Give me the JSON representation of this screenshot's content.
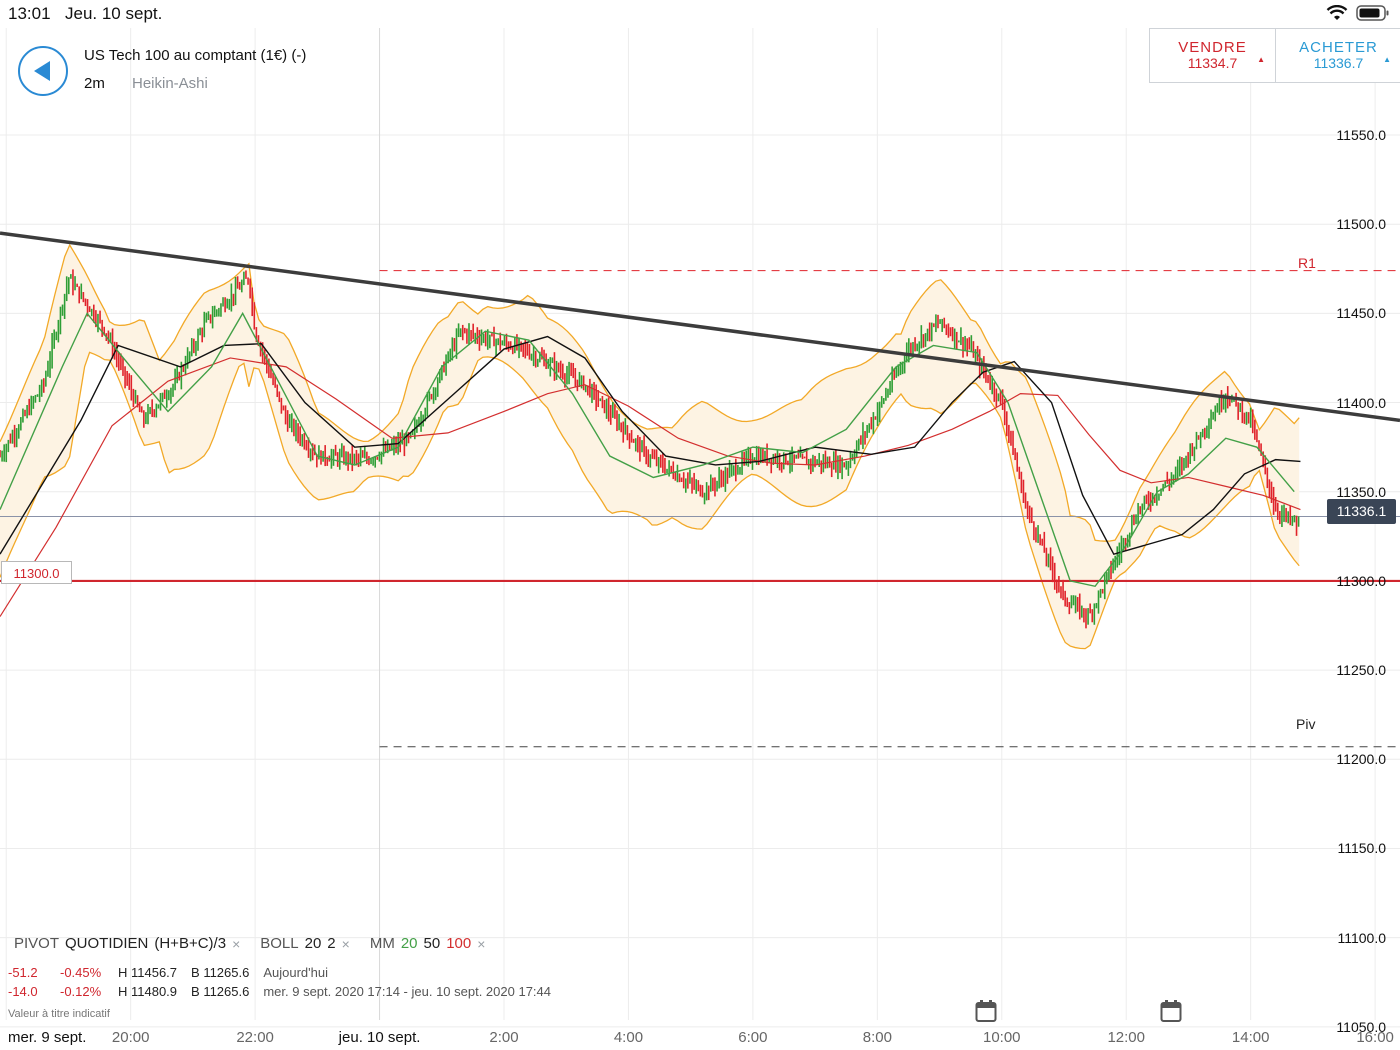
{
  "status_bar": {
    "time": "13:01",
    "date": "Jeu. 10 sept.",
    "icons": [
      "wifi-icon",
      "battery-icon"
    ]
  },
  "header": {
    "instrument": "US Tech 100 au comptant (1€) (-)",
    "timeframe": "2m",
    "chart_type": "Heikin-Ashi",
    "sell": {
      "label": "VENDRE",
      "price": "11334.7"
    },
    "buy": {
      "label": "ACHETER",
      "price": "11336.7"
    }
  },
  "legend": {
    "pivot": "PIVOT",
    "pivot_mode": "QUOTIDIEN",
    "pivot_formula": "(H+B+C)/3",
    "boll": "BOLL",
    "boll_period": "20",
    "boll_dev": "2",
    "mm": "MM",
    "mm_20": "20",
    "mm_50": "50",
    "mm_100": "100",
    "close": "×"
  },
  "info_rows": [
    {
      "change": "-51.2",
      "pct": "-0.45%",
      "high": "H 11456.7",
      "low": "B 11265.6",
      "period": "Aujourd'hui"
    },
    {
      "change": "-14.0",
      "pct": "-0.12%",
      "high": "H 11480.9",
      "low": "B 11265.6",
      "period": "mer. 9 sept. 2020 17:14 - jeu. 10 sept. 2020 17:44"
    }
  ],
  "disclaimer": "Valeur à titre indicatif",
  "current_price_tag": "11336.1",
  "alert_level_tag": "11300.0",
  "levels": {
    "r1": "R1",
    "piv": "Piv"
  },
  "colors": {
    "up": "#2e9e35",
    "down": "#e0232b",
    "boll": "#f2a928",
    "ma20": "#43a047",
    "ma50": "#111111",
    "ma100": "#d32f2f",
    "trend": "#3c3c3c",
    "accent": "#2a8ad4"
  },
  "chart_data": {
    "type": "line",
    "title": "",
    "x_ticks": [
      "mer. 9 sept.",
      "20:00",
      "22:00",
      "jeu. 10 sept.",
      "2:00",
      "4:00",
      "6:00",
      "8:00",
      "10:00",
      "12:00",
      "14:00",
      "16:00"
    ],
    "y_ticks": [
      "11550.0",
      "11500.0",
      "11450.0",
      "11400.0",
      "11350.0",
      "11300.0",
      "11250.0",
      "11200.0",
      "11150.0",
      "11100.0",
      "11050.0"
    ],
    "ylim": [
      11037,
      11610
    ],
    "xlim_hours": [
      17.9,
      40.4
    ],
    "horizontal_lines": [
      {
        "name": "R1",
        "value": 11474,
        "style": "dashed"
      },
      {
        "name": "Piv",
        "value": 11207,
        "style": "dashed"
      },
      {
        "name": "alert",
        "value": 11300,
        "style": "solid"
      },
      {
        "name": "current",
        "value": 11336.1,
        "style": "solid"
      }
    ],
    "trendline": {
      "x": [
        17.9,
        40.4
      ],
      "y": [
        11495,
        11390
      ]
    },
    "series": [
      {
        "x": [
          17.9,
          18.6,
          19.0,
          19.6,
          20.2,
          20.7,
          21.2,
          21.9,
          22.0,
          22.5,
          23.0,
          23.8,
          24.5,
          25.3,
          26.3,
          27.3,
          28.3,
          29.2,
          30.0,
          31.5,
          32.0,
          32.5,
          33.0,
          33.5,
          34.0,
          34.4,
          35.0,
          35.4,
          35.8,
          36.2,
          36.8,
          37.6,
          38.0,
          38.4,
          38.8
        ],
        "y": [
          11370,
          11410,
          11470,
          11440,
          11390,
          11410,
          11445,
          11470,
          11440,
          11390,
          11370,
          11368,
          11380,
          11440,
          11430,
          11410,
          11370,
          11350,
          11370,
          11365,
          11395,
          11430,
          11445,
          11430,
          11400,
          11340,
          11290,
          11280,
          11310,
          11340,
          11360,
          11405,
          11390,
          11340,
          11330
        ]
      },
      {
        "name": "20",
        "x": [
          17.9,
          18.9,
          19.3,
          20.0,
          20.6,
          21.3,
          21.8,
          22.4,
          23.0,
          23.6,
          24.3,
          25.0,
          25.7,
          26.4,
          27.1,
          27.7,
          28.4,
          29.2,
          30.0,
          30.8,
          31.5,
          32.3,
          32.9,
          33.6,
          34.1,
          34.6,
          35.1,
          35.5,
          36.0,
          36.5,
          37.0,
          37.6,
          38.1,
          38.7
        ],
        "y": [
          11340,
          11420,
          11450,
          11420,
          11395,
          11420,
          11450,
          11410,
          11370,
          11365,
          11375,
          11420,
          11440,
          11435,
          11405,
          11370,
          11358,
          11365,
          11375,
          11372,
          11385,
          11420,
          11432,
          11428,
          11400,
          11350,
          11300,
          11297,
          11320,
          11350,
          11360,
          11380,
          11375,
          11350
        ]
      },
      {
        "name": "50",
        "x": [
          17.9,
          19.2,
          19.8,
          20.8,
          21.5,
          22.1,
          22.8,
          23.6,
          24.3,
          25.2,
          26.0,
          26.7,
          27.3,
          27.9,
          28.6,
          29.4,
          30.1,
          31.0,
          31.9,
          32.6,
          33.2,
          33.7,
          34.2,
          34.8,
          35.3,
          35.8,
          36.3,
          36.9,
          37.4,
          37.9,
          38.4,
          38.8
        ],
        "y": [
          11315,
          11390,
          11432,
          11420,
          11432,
          11433,
          11400,
          11375,
          11377,
          11405,
          11430,
          11437,
          11425,
          11395,
          11370,
          11365,
          11367,
          11375,
          11371,
          11375,
          11400,
          11417,
          11423,
          11400,
          11348,
          11315,
          11320,
          11326,
          11340,
          11360,
          11368,
          11367
        ]
      },
      {
        "name": "100",
        "x": [
          17.9,
          18.8,
          19.7,
          20.6,
          21.6,
          22.5,
          23.3,
          24.2,
          25.1,
          26.0,
          26.7,
          27.3,
          28.0,
          28.8,
          29.6,
          30.3,
          31.0,
          31.8,
          32.5,
          33.2,
          33.8,
          34.3,
          34.9,
          35.4,
          35.9,
          36.4,
          37.0,
          37.6,
          38.2,
          38.8
        ],
        "y": [
          11280,
          11330,
          11387,
          11412,
          11425,
          11420,
          11402,
          11380,
          11383,
          11395,
          11405,
          11410,
          11398,
          11380,
          11370,
          11366,
          11365,
          11370,
          11376,
          11385,
          11395,
          11405,
          11404,
          11382,
          11362,
          11355,
          11358,
          11353,
          11348,
          11340
        ]
      }
    ]
  }
}
